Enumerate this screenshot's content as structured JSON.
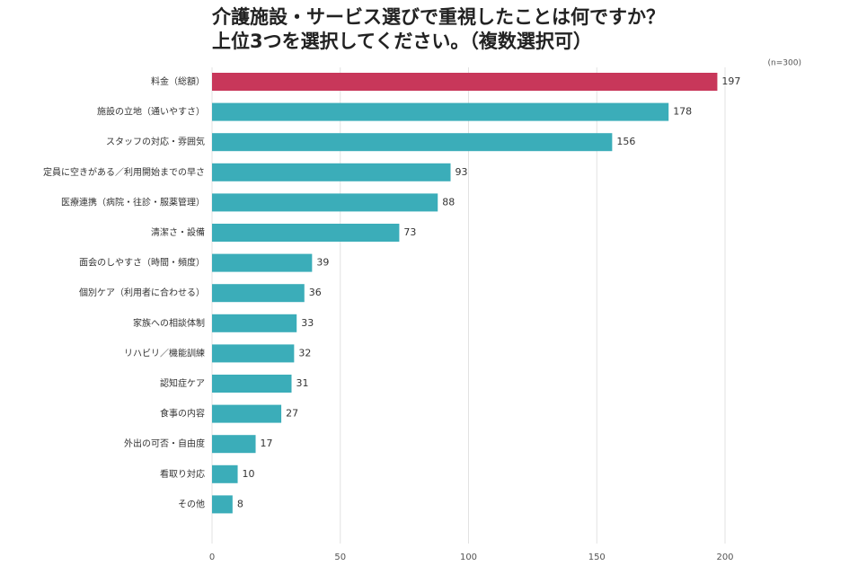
{
  "chart_data": {
    "type": "bar",
    "orientation": "horizontal",
    "title": [
      "介護施設・サービス選びで重視したことは何ですか？",
      "上位3つを選択してください。（複数選択可）"
    ],
    "note": "(n=300)",
    "categories": [
      "料金（総額）",
      "施設の立地（通いやすさ）",
      "スタッフの対応・雰囲気",
      "定員に空きがある／利用開始までの早さ",
      "医療連携（病院・往診・服薬管理）",
      "清潔さ・設備",
      "面会のしやすさ（時間・頻度）",
      "個別ケア（利用者に合わせる）",
      "家族への相談体制",
      "リハビリ／機能訓練",
      "認知症ケア",
      "食事の内容",
      "外出の可否・自由度",
      "看取り対応",
      "その他"
    ],
    "values": [
      197,
      178,
      156,
      93,
      88,
      73,
      39,
      36,
      33,
      32,
      31,
      27,
      17,
      10,
      8
    ],
    "colors": [
      "#c8375a",
      "#3badb9",
      "#3badb9",
      "#3badb9",
      "#3badb9",
      "#3badb9",
      "#3badb9",
      "#3badb9",
      "#3badb9",
      "#3badb9",
      "#3badb9",
      "#3badb9",
      "#3badb9",
      "#3badb9",
      "#3badb9"
    ],
    "xlim": [
      0,
      200
    ],
    "xticks": [
      0,
      50,
      100,
      150,
      200
    ],
    "grid": true
  }
}
